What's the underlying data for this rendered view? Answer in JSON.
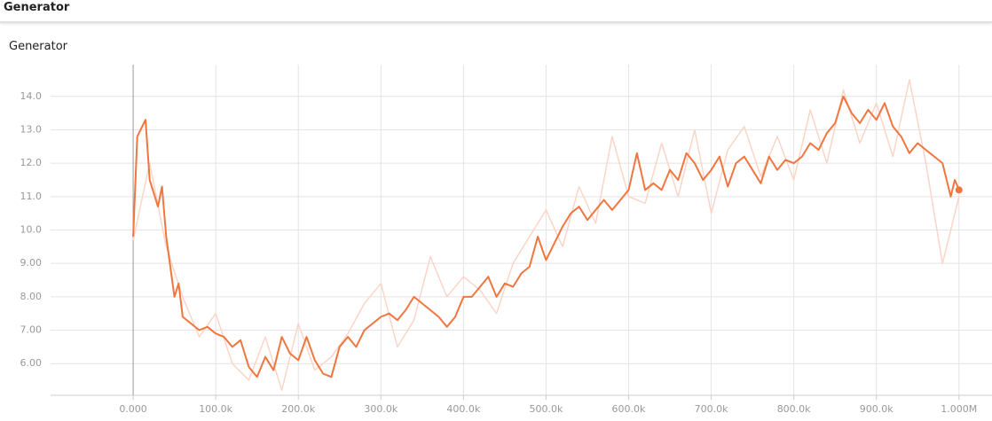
{
  "section_title": "Generator",
  "chart_data": {
    "type": "line",
    "title": "Generator",
    "xlim": [
      -100000,
      1040000
    ],
    "ylim": [
      5.05,
      14.95
    ],
    "xticks": [
      {
        "value": 0,
        "label": "0.000"
      },
      {
        "value": 100000,
        "label": "100.0k"
      },
      {
        "value": 200000,
        "label": "200.0k"
      },
      {
        "value": 300000,
        "label": "300.0k"
      },
      {
        "value": 400000,
        "label": "400.0k"
      },
      {
        "value": 500000,
        "label": "500.0k"
      },
      {
        "value": 600000,
        "label": "600.0k"
      },
      {
        "value": 700000,
        "label": "700.0k"
      },
      {
        "value": 800000,
        "label": "800.0k"
      },
      {
        "value": 900000,
        "label": "900.0k"
      },
      {
        "value": 1000000,
        "label": "1.000M"
      }
    ],
    "yticks": [
      {
        "value": 6,
        "label": "6.00"
      },
      {
        "value": 7,
        "label": "7.00"
      },
      {
        "value": 8,
        "label": "8.00"
      },
      {
        "value": 9,
        "label": "9.00"
      },
      {
        "value": 10,
        "label": "10.0"
      },
      {
        "value": 11,
        "label": "11.0"
      },
      {
        "value": 12,
        "label": "12.0"
      },
      {
        "value": 13,
        "label": "13.0"
      },
      {
        "value": 14,
        "label": "14.0"
      }
    ],
    "grid": true,
    "series": [
      {
        "color": "#fbd5c8",
        "x": [
          0,
          20000,
          40000,
          60000,
          80000,
          100000,
          120000,
          140000,
          160000,
          180000,
          200000,
          220000,
          240000,
          260000,
          280000,
          300000,
          320000,
          340000,
          360000,
          380000,
          400000,
          420000,
          440000,
          460000,
          480000,
          500000,
          520000,
          540000,
          560000,
          580000,
          600000,
          620000,
          640000,
          660000,
          680000,
          700000,
          720000,
          740000,
          760000,
          780000,
          800000,
          820000,
          840000,
          860000,
          880000,
          900000,
          920000,
          940000,
          960000,
          980000,
          1000000
        ],
        "values": [
          9.7,
          12.0,
          9.5,
          8.0,
          6.8,
          7.5,
          6.0,
          5.5,
          6.8,
          5.2,
          7.2,
          5.8,
          6.2,
          6.9,
          7.8,
          8.4,
          6.5,
          7.3,
          9.2,
          8.0,
          8.6,
          8.2,
          7.5,
          9.0,
          9.8,
          10.6,
          9.5,
          11.3,
          10.2,
          12.8,
          11.0,
          10.8,
          12.6,
          11.0,
          13.0,
          10.5,
          12.4,
          13.1,
          11.6,
          12.8,
          11.5,
          13.6,
          12.0,
          14.2,
          12.6,
          13.8,
          12.2,
          14.5,
          12.0,
          9.0,
          11.0
        ]
      },
      {
        "color": "#f0763f",
        "x": [
          0,
          5000,
          15000,
          20000,
          30000,
          35000,
          40000,
          50000,
          55000,
          60000,
          70000,
          80000,
          90000,
          100000,
          110000,
          120000,
          130000,
          140000,
          150000,
          160000,
          170000,
          180000,
          190000,
          200000,
          210000,
          220000,
          230000,
          240000,
          250000,
          260000,
          270000,
          280000,
          290000,
          300000,
          310000,
          320000,
          330000,
          340000,
          350000,
          360000,
          370000,
          380000,
          390000,
          400000,
          410000,
          420000,
          430000,
          440000,
          450000,
          460000,
          470000,
          480000,
          490000,
          500000,
          510000,
          520000,
          530000,
          540000,
          550000,
          560000,
          570000,
          580000,
          590000,
          600000,
          610000,
          620000,
          630000,
          640000,
          650000,
          660000,
          670000,
          680000,
          690000,
          700000,
          710000,
          720000,
          730000,
          740000,
          750000,
          760000,
          770000,
          780000,
          790000,
          800000,
          810000,
          820000,
          830000,
          840000,
          850000,
          860000,
          870000,
          880000,
          890000,
          900000,
          910000,
          920000,
          930000,
          940000,
          950000,
          960000,
          970000,
          980000,
          990000,
          995000,
          1000000
        ],
        "values": [
          9.8,
          12.8,
          13.3,
          11.5,
          10.7,
          11.3,
          9.8,
          8.0,
          8.4,
          7.4,
          7.2,
          7.0,
          7.1,
          6.9,
          6.8,
          6.5,
          6.7,
          5.9,
          5.6,
          6.2,
          5.8,
          6.8,
          6.3,
          6.1,
          6.8,
          6.1,
          5.7,
          5.6,
          6.5,
          6.8,
          6.5,
          7.0,
          7.2,
          7.4,
          7.5,
          7.3,
          7.6,
          8.0,
          7.8,
          7.6,
          7.4,
          7.1,
          7.4,
          8.0,
          8.0,
          8.3,
          8.6,
          8.0,
          8.4,
          8.3,
          8.7,
          8.9,
          9.8,
          9.1,
          9.6,
          10.1,
          10.5,
          10.7,
          10.3,
          10.6,
          10.9,
          10.6,
          10.9,
          11.2,
          12.3,
          11.2,
          11.4,
          11.2,
          11.8,
          11.5,
          12.3,
          12.0,
          11.5,
          11.8,
          12.2,
          11.3,
          12.0,
          12.2,
          11.8,
          11.4,
          12.2,
          11.8,
          12.1,
          12.0,
          12.2,
          12.6,
          12.4,
          12.9,
          13.2,
          14.0,
          13.5,
          13.2,
          13.6,
          13.3,
          13.8,
          13.1,
          12.8,
          12.3,
          12.6,
          12.4,
          12.2,
          12.0,
          11.0,
          11.5,
          11.2
        ]
      }
    ]
  }
}
